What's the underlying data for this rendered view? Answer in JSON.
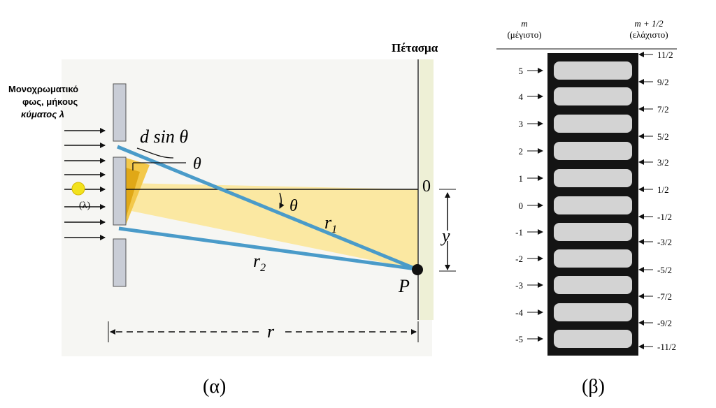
{
  "left_panel": {
    "source_label": [
      "Μονοχρωματικό",
      "φως, μήκους",
      "κύματος λ"
    ],
    "lambda_label": "(λ)",
    "path_difference": "d sin θ",
    "angle_top": "θ",
    "angle_mid": "θ",
    "origin": "0",
    "y_label": "y",
    "r1": {
      "base": "r",
      "sub": "1"
    },
    "r2": {
      "base": "r",
      "sub": "2"
    },
    "point": "P",
    "distance": "r",
    "screen": "Πέτασμα",
    "caption": "(α)"
  },
  "right_panel": {
    "max_header": [
      "m",
      "(μέγιστο)"
    ],
    "min_header": [
      "m + 1/2",
      "(ελάχιστο)"
    ],
    "maxima": [
      "5",
      "4",
      "3",
      "2",
      "1",
      "0",
      "-1",
      "-2",
      "-3",
      "-4",
      "-5"
    ],
    "minima": [
      "11/2",
      "9/2",
      "7/2",
      "5/2",
      "3/2",
      "1/2",
      "-1/2",
      "-3/2",
      "-5/2",
      "-7/2",
      "-9/2",
      "-11/2"
    ],
    "caption": "(β)"
  }
}
